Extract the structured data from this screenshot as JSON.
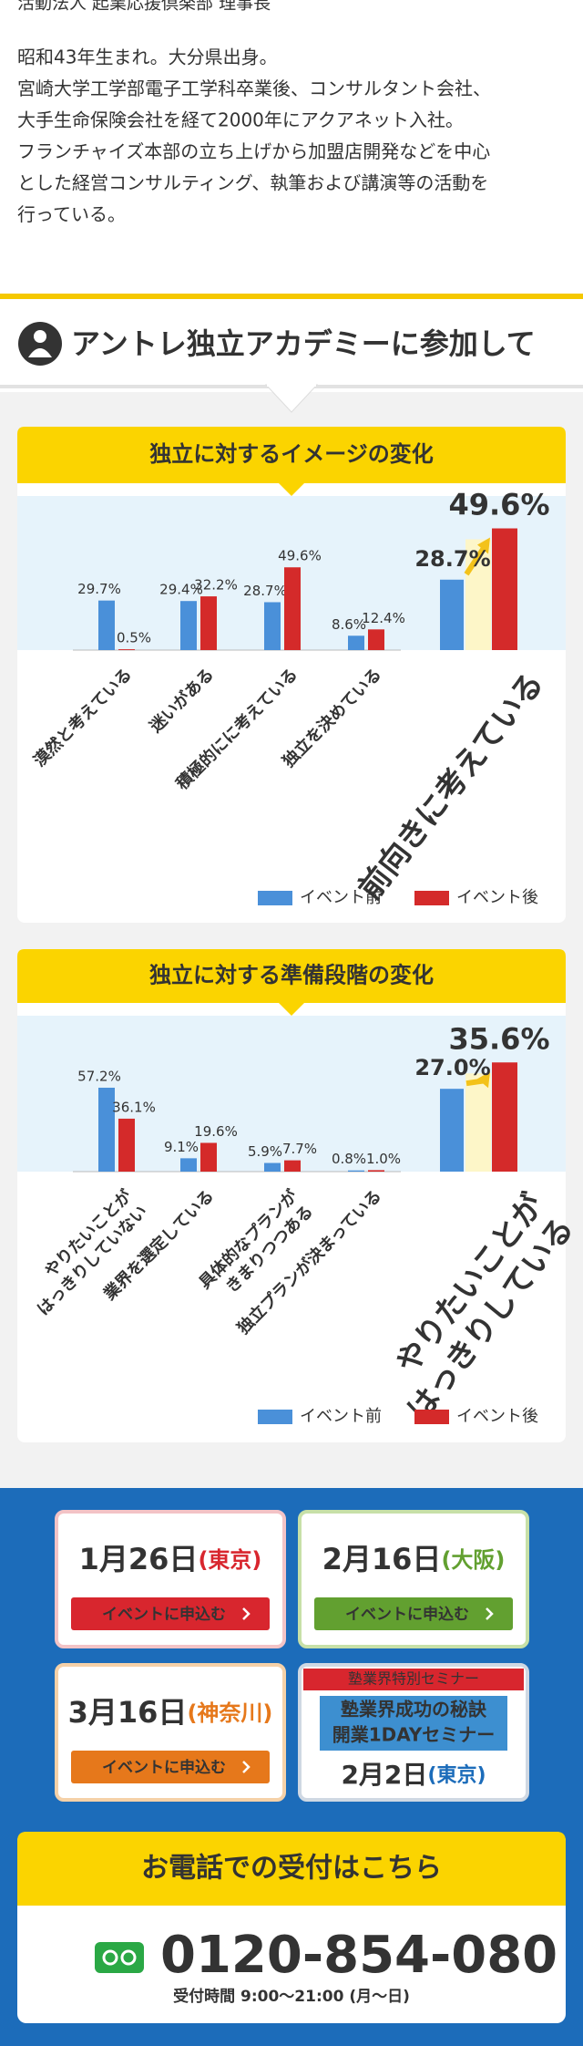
{
  "profile": {
    "affiliation": "活動法人 起業応援倶楽部 理事長",
    "lines": [
      "昭和43年生まれ。大分県出身。",
      "宮崎大学工学部電子工学科卒業後、コンサルタント会社、",
      "大手生命保険会社を経て2000年にアクアネット入社。",
      "フランチャイズ本部の立ち上げから加盟店開発などを中心",
      "とした経営コンサルティング、執筆および講演等の活動を",
      "行っている。"
    ]
  },
  "section_heading": "アントレ独立アカデミーに参加して",
  "chart_data": [
    {
      "type": "bar",
      "title": "独立に対するイメージの変化",
      "categories": [
        [
          "漠然と考えている"
        ],
        [
          "迷いがある"
        ],
        [
          "積極的にに考えている"
        ],
        [
          "独立を決めている"
        ]
      ],
      "series": [
        {
          "name": "イベント前",
          "color": "#4a90d9",
          "values": [
            29.7,
            29.4,
            28.7,
            8.6
          ],
          "value_labels": [
            "29.7%",
            "29.4%",
            "28.7%",
            "8.6%"
          ]
        },
        {
          "name": "イベント後",
          "color": "#d42a2a",
          "values": [
            0.5,
            32.2,
            49.6,
            12.4
          ],
          "value_labels": [
            "0.5%",
            "32.2%",
            "49.6%",
            "12.4%"
          ]
        }
      ],
      "ylim": [
        0,
        100
      ],
      "highlight": {
        "values": [
          28.7,
          49.6
        ],
        "value_labels": [
          "28.7%",
          "49.6%"
        ],
        "ylim": [
          0,
          68
        ],
        "annotation": [
          "前向きに考えている"
        ]
      }
    },
    {
      "type": "bar",
      "title": "独立に対する準備段階の変化",
      "categories": [
        [
          "やりたいことが",
          "はっきりしていない"
        ],
        [
          "業界を選定している"
        ],
        [
          "具体的なプランが",
          "きまりつつある"
        ],
        [
          "独立プランが決まっている"
        ]
      ],
      "series": [
        {
          "name": "イベント前",
          "color": "#4a90d9",
          "values": [
            57.2,
            9.1,
            5.9,
            0.8
          ],
          "value_labels": [
            "57.2%",
            "9.1%",
            "5.9%",
            "0.8%"
          ]
        },
        {
          "name": "イベント後",
          "color": "#d42a2a",
          "values": [
            36.1,
            19.6,
            7.7,
            1.0
          ],
          "value_labels": [
            "36.1%",
            "19.6%",
            "7.7%",
            "1.0%"
          ]
        }
      ],
      "ylim": [
        0,
        115
      ],
      "highlight": {
        "values": [
          27.0,
          35.6
        ],
        "value_labels": [
          "27.0%",
          "35.6%"
        ],
        "ylim": [
          0,
          55
        ],
        "annotation": [
          "やりたいことが",
          "はっきりしている"
        ]
      }
    }
  ],
  "events": [
    {
      "date": "1月26日",
      "place": "(東京)",
      "button": "イベントに申込む",
      "color": "#d8262e",
      "border": "#f3c3c6"
    },
    {
      "date": "2月16日",
      "place": "(大阪)",
      "button": "イベントに申込む",
      "color": "#62a030",
      "border": "#c7e0a8"
    },
    {
      "date": "3月16日",
      "place": "(神奈川)",
      "button": "イベントに申込む",
      "color": "#e6781b",
      "border": "#f5d1a8"
    }
  ],
  "seminar": {
    "banner": "塾業界特別セミナー",
    "lines": [
      "塾業界成功の秘訣",
      "開業1DAYセミナー"
    ],
    "date": "2月2日",
    "place": "(東京)"
  },
  "phone": {
    "title": "お電話での受付はこちら",
    "number": "0120-854-080",
    "hours": "受付時間 9:00～21:00 (月～日)"
  }
}
